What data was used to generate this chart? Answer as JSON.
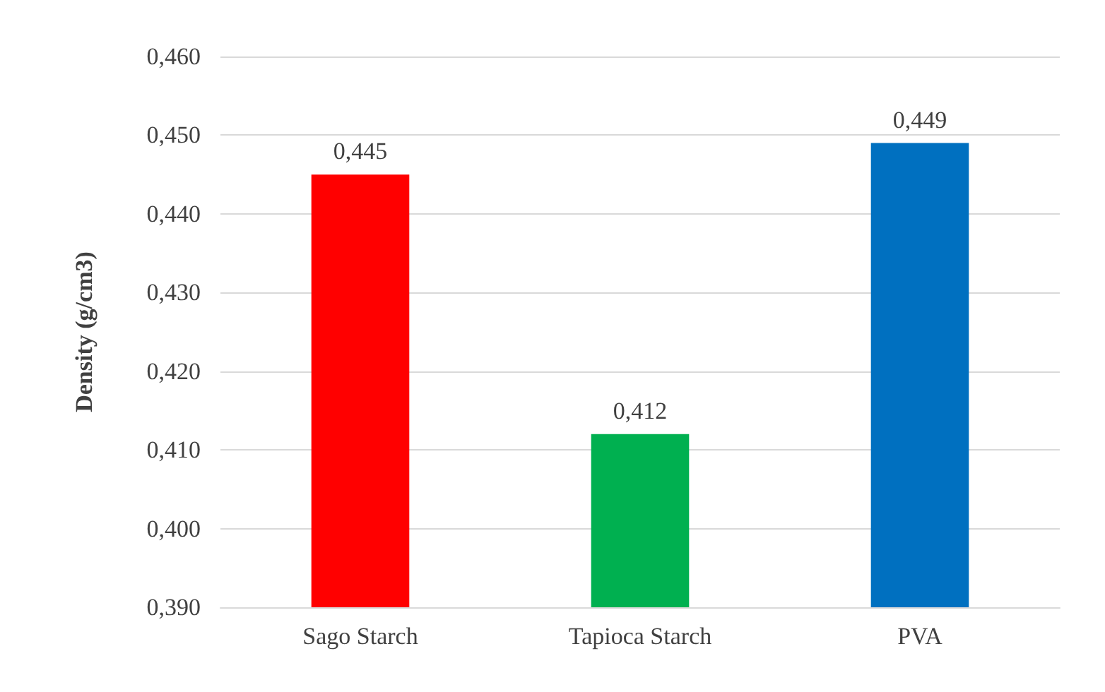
{
  "chart_data": {
    "type": "bar",
    "ylabel": "Density (g/cm3)",
    "categories": [
      "Sago Starch",
      "Tapioca Starch",
      "PVA"
    ],
    "values": [
      0.445,
      0.412,
      0.449
    ],
    "colors": [
      "#ff0000",
      "#00b050",
      "#0070c0"
    ],
    "value_labels": [
      "0,445",
      "0,412",
      "0,449"
    ],
    "ylim": [
      0.39,
      0.46
    ],
    "yticks": [
      {
        "value": 0.39,
        "label": "0,390"
      },
      {
        "value": 0.4,
        "label": "0,400"
      },
      {
        "value": 0.41,
        "label": "0,410"
      },
      {
        "value": 0.42,
        "label": "0,420"
      },
      {
        "value": 0.43,
        "label": "0,430"
      },
      {
        "value": 0.44,
        "label": "0,440"
      },
      {
        "value": 0.45,
        "label": "0,450"
      },
      {
        "value": 0.46,
        "label": "0,460"
      }
    ],
    "grid": "y"
  }
}
